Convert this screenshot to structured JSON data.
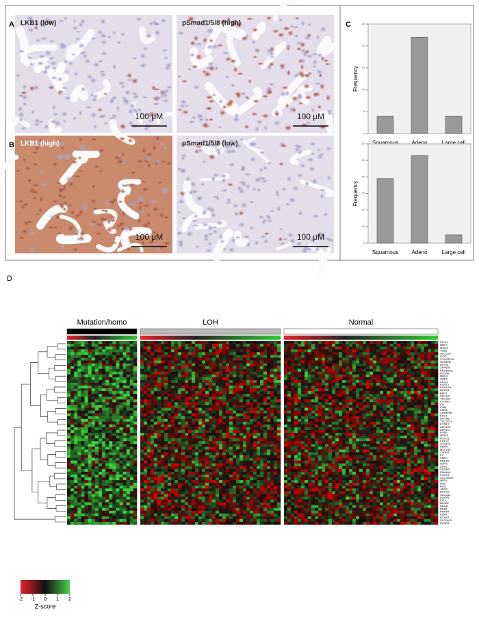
{
  "panels": {
    "a": "A",
    "b": "B",
    "c": "C",
    "d": "D"
  },
  "images": [
    {
      "label": "LKB1 (low)",
      "scale": "100 μM"
    },
    {
      "label": "pSmad1/5/8 (high)",
      "scale": "100 μM"
    },
    {
      "label": "LKB1 (high)",
      "scale": "100 μM"
    },
    {
      "label": "pSmad1/5/8 (low)",
      "scale": "100 μM"
    }
  ],
  "chart_data": [
    {
      "type": "bar",
      "y_label": "Frequency",
      "categories": [
        "Squamous",
        "Adeno",
        "Large cell"
      ],
      "values": [
        4,
        22,
        4
      ],
      "color": "#999999",
      "ylim": [
        0,
        25
      ],
      "yticks": [
        0,
        5,
        10,
        15,
        20,
        25
      ]
    },
    {
      "type": "bar",
      "y_label": "Frequency",
      "categories": [
        "Squamous",
        "Adeno",
        "Large cell"
      ],
      "values": [
        39,
        53,
        5
      ],
      "color": "#999999",
      "ylim": [
        0,
        60
      ],
      "yticks": [
        0,
        10,
        20,
        30,
        40,
        50,
        60
      ]
    }
  ],
  "heatmap": {
    "groups": [
      "Mutation/homo",
      "LOH",
      "Normal"
    ],
    "genes": [
      "STX11",
      "BMP2",
      "MAOA",
      "TOB1",
      "SUCLG2",
      "LNX2",
      "C10ORF35",
      "SORBS2",
      "RFTN1",
      "ZFAND5",
      "RHOBTB2",
      "ATOH8",
      "MBLN",
      "GNB2",
      "CLIC3",
      "FURT3",
      "DUOXA1",
      "DUOX1",
      "BAG1",
      "SIGLEC",
      "TBC1D2",
      "C7ORF1",
      "ID4",
      "PIM3",
      "USPA",
      "CHIMP4B",
      "EFG1",
      "DOTNB",
      "TSC22D1",
      "KCNK1",
      "AKR1C2",
      "AKR1C1",
      "FOSP",
      "MEIS2",
      "FOXO1",
      "ERAS1",
      "CYLB7A",
      "FBXW",
      "MECOM",
      "ZXDH3",
      "F3",
      "CMP1",
      "PDE4D",
      "AVPI1",
      "DDA2",
      "SETBP1",
      "FAM46A",
      "CXCR4",
      "CACNA2D",
      "NFF5",
      "PGC",
      "IRS2",
      "JADE1",
      "DOCK3",
      "SUCLA2",
      "DUSP4",
      "EIF1",
      "NR4A2",
      "NR4A1",
      "RND1",
      "PRRFA",
      "PDK4",
      "PCSK9",
      "SLC16A3",
      "KCNK3"
    ],
    "colorbar": {
      "ticks": [
        -2,
        -1,
        0,
        1,
        2
      ],
      "label": "Z-score"
    }
  }
}
